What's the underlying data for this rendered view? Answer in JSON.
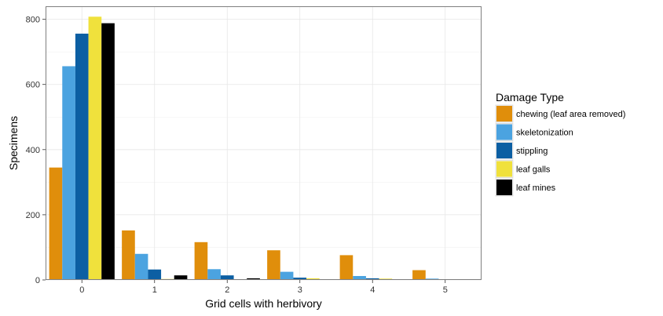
{
  "chart_data": {
    "type": "bar",
    "title": "",
    "xlabel": "Grid cells with herbivory",
    "ylabel": "Specimens",
    "categories": [
      "0",
      "1",
      "2",
      "3",
      "4",
      "5"
    ],
    "ylim": [
      0,
      840
    ],
    "yticks": [
      0,
      200,
      400,
      600,
      800
    ],
    "grid": true,
    "legend": {
      "title": "Damage Type",
      "placement": "right"
    },
    "series": [
      {
        "name": "chewing (leaf area removed)",
        "color": "#E08E0B",
        "values": [
          345,
          152,
          116,
          91,
          76,
          30
        ]
      },
      {
        "name": "skeletonization",
        "color": "#4BA3E0",
        "values": [
          656,
          80,
          33,
          25,
          12,
          4
        ]
      },
      {
        "name": "stippling",
        "color": "#0C5FA3",
        "values": [
          756,
          32,
          14,
          7,
          5,
          2
        ]
      },
      {
        "name": "leaf galls",
        "color": "#F0E13C",
        "values": [
          808,
          3,
          2,
          5,
          4,
          1
        ]
      },
      {
        "name": "leaf mines",
        "color": "#000000",
        "values": [
          788,
          14,
          5,
          2,
          2,
          1
        ]
      }
    ]
  }
}
